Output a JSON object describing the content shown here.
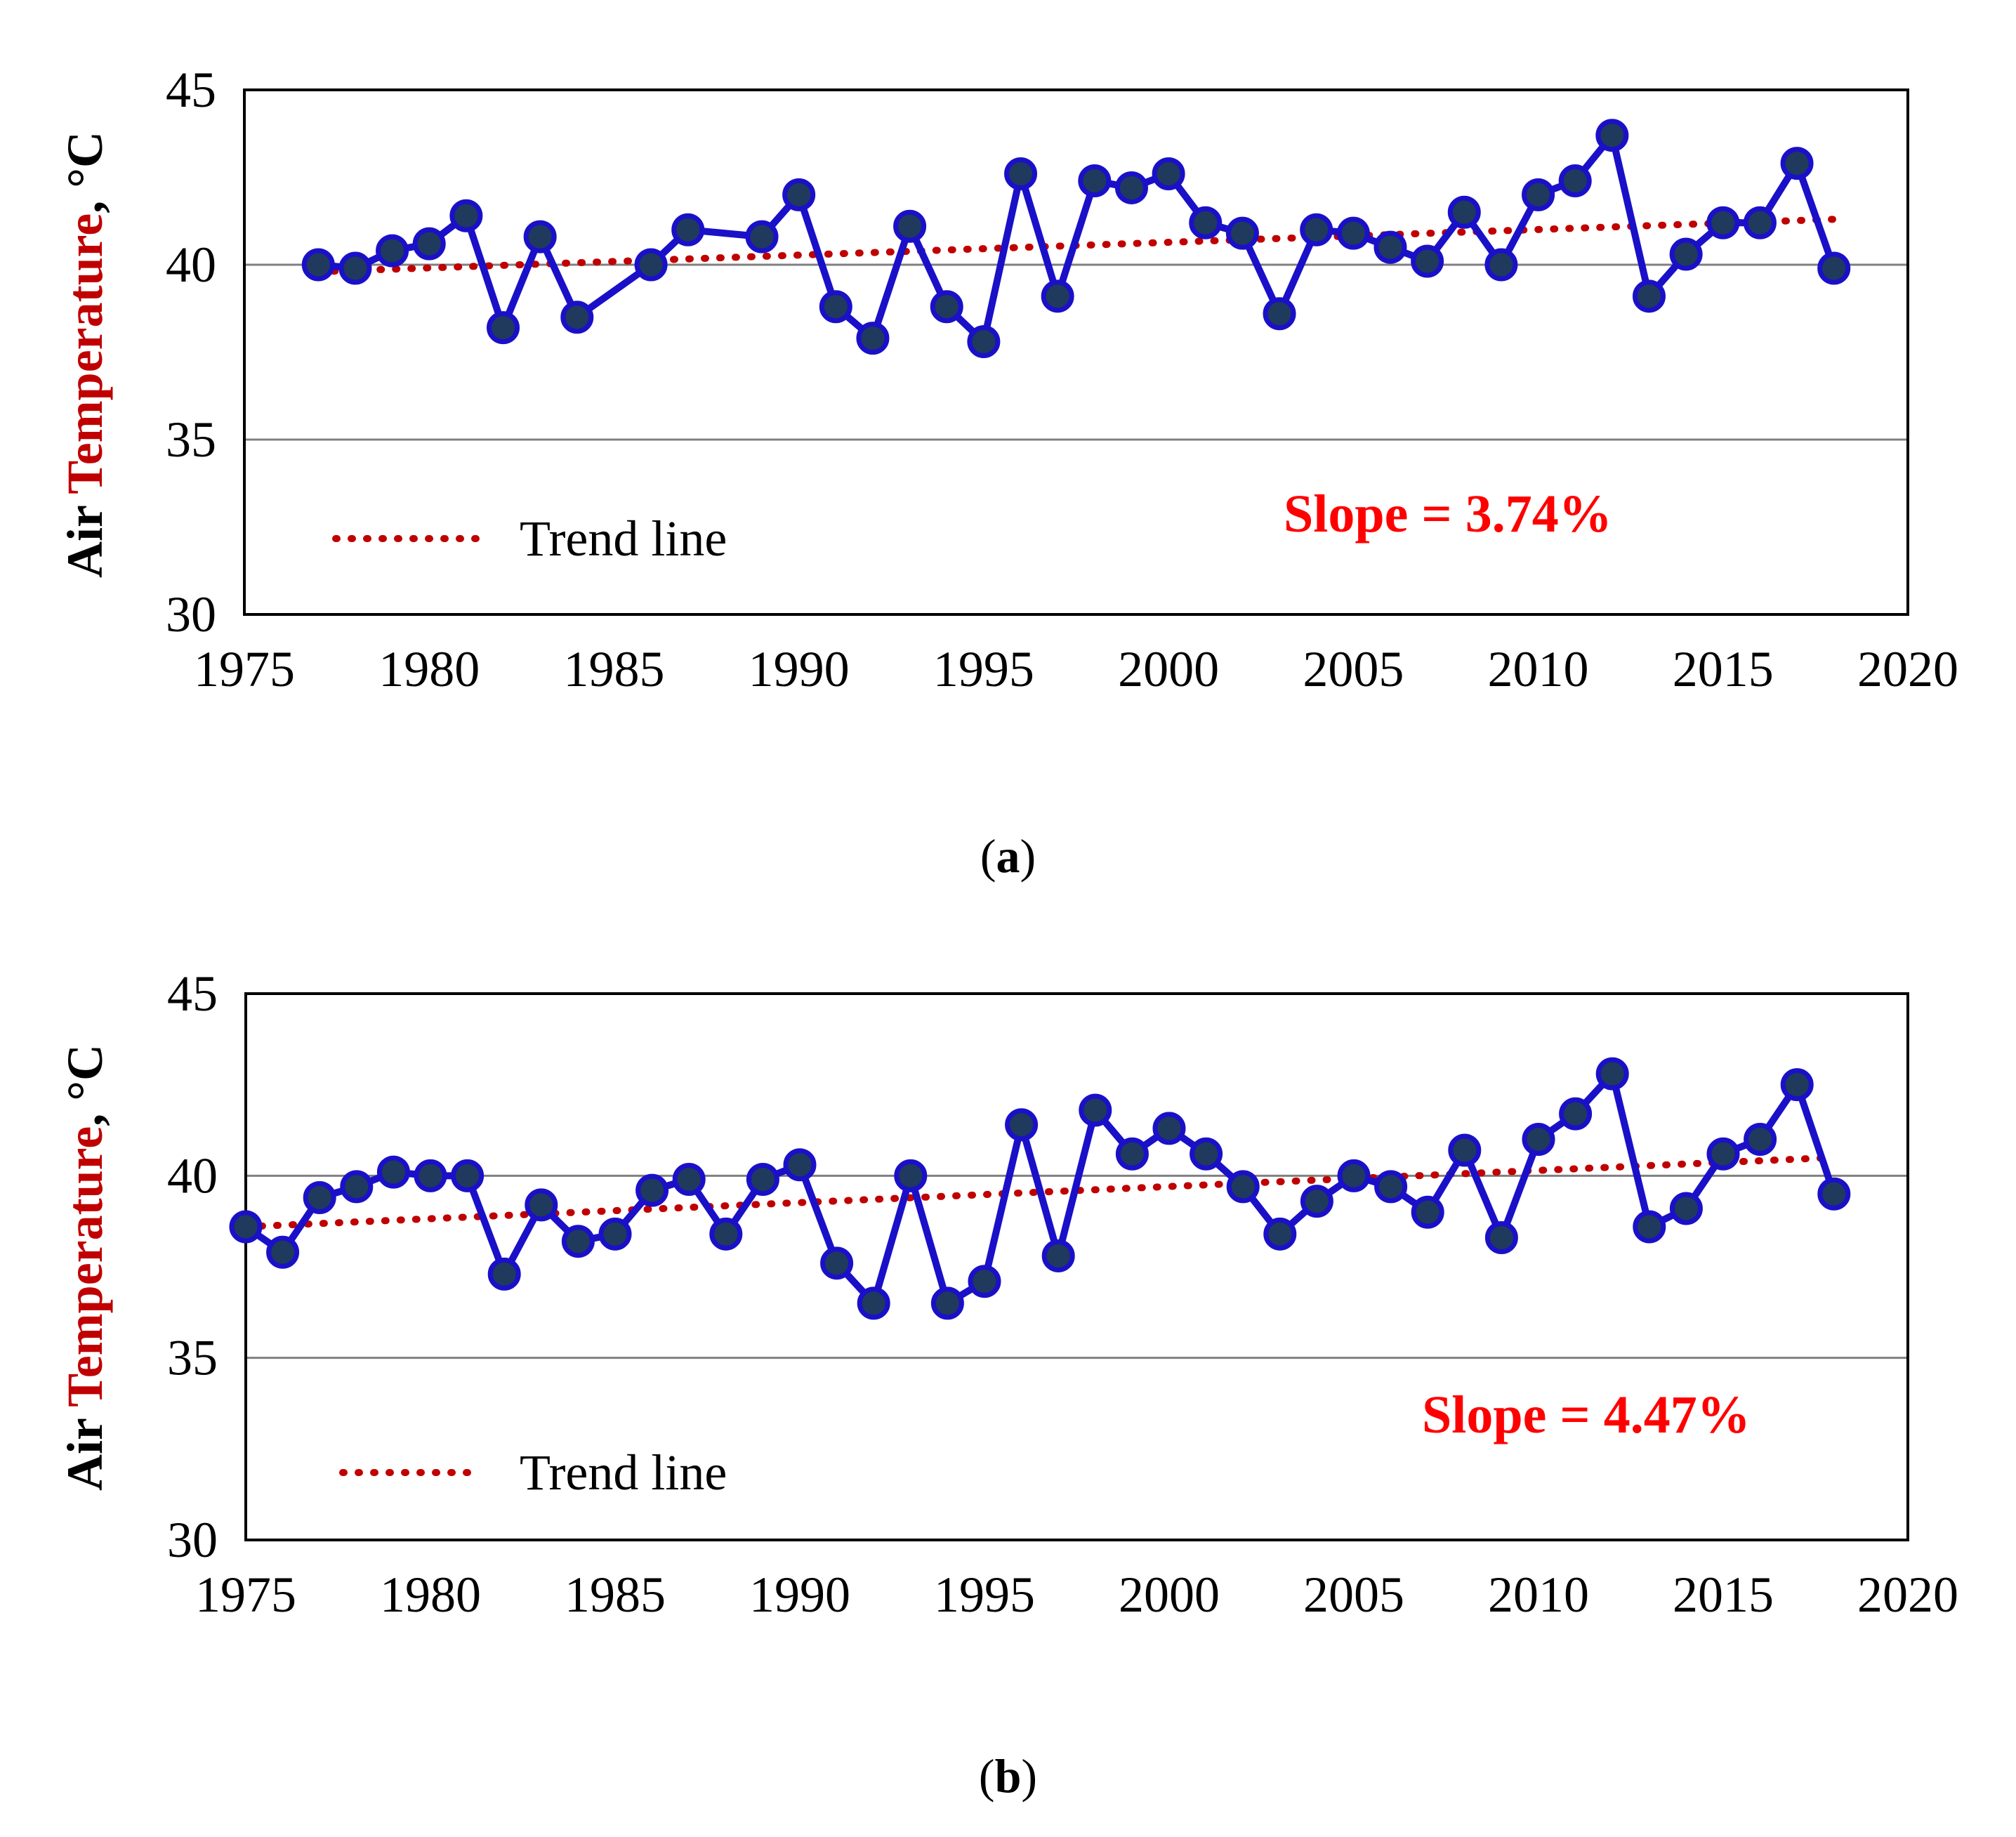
{
  "colors": {
    "series_line": "#1a10c8",
    "marker_fill": "#1f3a5c",
    "trend": "#c00000",
    "slope_text": "#ff0000",
    "ylabel_highlight": "#c00000",
    "grid": "#808080",
    "text": "#000000"
  },
  "legend_label": "Trend line",
  "chart_data": [
    {
      "type": "line",
      "panel": "a",
      "caption_letter": "a",
      "ylabel_parts": [
        "Air ",
        "Temperature",
        ", °C"
      ],
      "xlim": [
        1975,
        2020
      ],
      "ylim": [
        30,
        45
      ],
      "xticks": [
        "1975",
        "1980",
        "1985",
        "1990",
        "1995",
        "2000",
        "2005",
        "2010",
        "2015",
        "2020"
      ],
      "yticks": [
        "30",
        "35",
        "40",
        "45"
      ],
      "gridlines_y": [
        35,
        40
      ],
      "legend": "Trend line",
      "slope_label": "Slope = 3.74%",
      "trend": {
        "x": [
          1977,
          2018
        ],
        "y": [
          39.8,
          41.3
        ]
      },
      "x": [
        1977,
        1978,
        1979,
        1980,
        1981,
        1982,
        1983,
        1984,
        1986,
        1987,
        1989,
        1990,
        1991,
        1992,
        1993,
        1994,
        1995,
        1996,
        1997,
        1998,
        1999,
        2000,
        2001,
        2002,
        2003,
        2004,
        2005,
        2006,
        2007,
        2008,
        2009,
        2010,
        2011,
        2012,
        2013,
        2014,
        2015,
        2016,
        2017,
        2018
      ],
      "y": [
        40.0,
        39.9,
        40.4,
        40.6,
        41.4,
        38.2,
        40.8,
        38.5,
        40.0,
        41.0,
        40.8,
        42.0,
        38.8,
        37.9,
        41.1,
        38.8,
        37.8,
        42.6,
        39.1,
        42.4,
        42.2,
        42.6,
        41.2,
        40.9,
        38.6,
        41.0,
        40.9,
        40.5,
        40.1,
        41.5,
        40.0,
        42.0,
        42.4,
        43.7,
        39.1,
        40.3,
        41.2,
        41.2,
        42.9,
        39.9
      ]
    },
    {
      "type": "line",
      "panel": "b",
      "caption_letter": "b",
      "ylabel_parts": [
        "Air ",
        "Temperature",
        ", °C"
      ],
      "xlim": [
        1975,
        2020
      ],
      "ylim": [
        30,
        45
      ],
      "xticks": [
        "1975",
        "1980",
        "1985",
        "1990",
        "1995",
        "2000",
        "2005",
        "2010",
        "2015",
        "2020"
      ],
      "yticks": [
        "30",
        "35",
        "40",
        "45"
      ],
      "gridlines_y": [
        35,
        40
      ],
      "legend": "Trend line",
      "slope_label": "Slope = 4.47%",
      "trend": {
        "x": [
          1975,
          2018
        ],
        "y": [
          38.6,
          40.5
        ]
      },
      "x": [
        1975,
        1976,
        1977,
        1978,
        1979,
        1980,
        1981,
        1982,
        1983,
        1984,
        1985,
        1986,
        1987,
        1988,
        1989,
        1990,
        1991,
        1992,
        1993,
        1994,
        1995,
        1996,
        1997,
        1998,
        1999,
        2000,
        2001,
        2002,
        2003,
        2004,
        2005,
        2006,
        2007,
        2008,
        2009,
        2010,
        2011,
        2012,
        2013,
        2014,
        2015,
        2016,
        2017,
        2018
      ],
      "y": [
        38.6,
        37.9,
        39.4,
        39.7,
        40.1,
        40.0,
        40.0,
        37.3,
        39.2,
        38.2,
        38.4,
        39.6,
        39.9,
        38.4,
        39.9,
        40.3,
        37.6,
        36.5,
        40.0,
        36.5,
        37.1,
        41.4,
        37.8,
        41.8,
        40.6,
        41.3,
        40.6,
        39.7,
        38.4,
        39.3,
        40.0,
        39.7,
        39.0,
        40.7,
        38.3,
        41.0,
        41.7,
        42.8,
        38.6,
        39.1,
        40.6,
        41.0,
        42.5,
        39.5
      ]
    }
  ]
}
